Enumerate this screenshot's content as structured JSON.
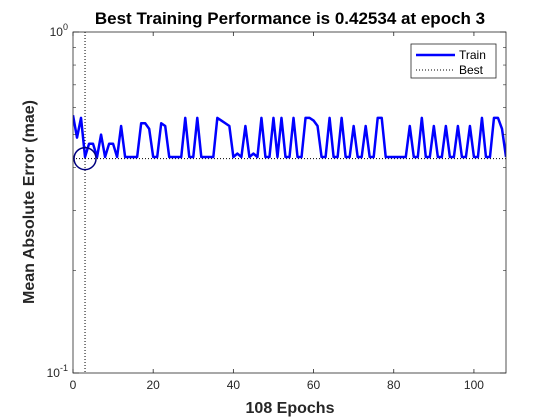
{
  "chart_data": {
    "type": "line",
    "title": "Best Training Performance is 0.42534 at epoch 3",
    "xlabel": "108 Epochs",
    "ylabel": "Mean Absolute Error  (mae)",
    "xlim": [
      0,
      108
    ],
    "ylim": [
      0.1,
      1
    ],
    "yscale": "log",
    "grid": false,
    "legend_position": "top-right",
    "x_ticks": [
      0,
      20,
      40,
      60,
      80,
      100
    ],
    "y_ticks": [
      {
        "value": 0.1,
        "base": "10",
        "exp": "-1"
      },
      {
        "value": 1,
        "base": "10",
        "exp": "0"
      }
    ],
    "best": {
      "epoch": 3,
      "value": 0.42534
    },
    "series": [
      {
        "name": "Train",
        "color": "#0000ff",
        "style": "solid",
        "x": [
          0,
          1,
          2,
          3,
          4,
          5,
          6,
          7,
          8,
          9,
          10,
          11,
          12,
          13,
          14,
          15,
          16,
          17,
          18,
          19,
          20,
          21,
          22,
          23,
          24,
          25,
          26,
          27,
          28,
          29,
          30,
          31,
          32,
          33,
          34,
          35,
          36,
          37,
          38,
          39,
          40,
          41,
          42,
          43,
          44,
          45,
          46,
          47,
          48,
          49,
          50,
          51,
          52,
          53,
          54,
          55,
          56,
          57,
          58,
          59,
          60,
          61,
          62,
          63,
          64,
          65,
          66,
          67,
          68,
          69,
          70,
          71,
          72,
          73,
          74,
          75,
          76,
          77,
          78,
          79,
          80,
          81,
          82,
          83,
          84,
          85,
          86,
          87,
          88,
          89,
          90,
          91,
          92,
          93,
          94,
          95,
          96,
          97,
          98,
          99,
          100,
          101,
          102,
          103,
          104,
          105,
          106,
          107,
          108
        ],
        "y": [
          0.57,
          0.49,
          0.56,
          0.43,
          0.47,
          0.47,
          0.43,
          0.5,
          0.43,
          0.47,
          0.47,
          0.43,
          0.53,
          0.43,
          0.43,
          0.43,
          0.43,
          0.54,
          0.54,
          0.52,
          0.43,
          0.43,
          0.54,
          0.53,
          0.43,
          0.43,
          0.43,
          0.43,
          0.56,
          0.43,
          0.43,
          0.56,
          0.43,
          0.43,
          0.43,
          0.43,
          0.56,
          0.55,
          0.54,
          0.53,
          0.43,
          0.44,
          0.43,
          0.53,
          0.43,
          0.44,
          0.43,
          0.56,
          0.43,
          0.43,
          0.56,
          0.43,
          0.56,
          0.43,
          0.43,
          0.56,
          0.43,
          0.43,
          0.56,
          0.56,
          0.55,
          0.53,
          0.43,
          0.43,
          0.56,
          0.43,
          0.43,
          0.56,
          0.43,
          0.43,
          0.53,
          0.43,
          0.43,
          0.53,
          0.43,
          0.43,
          0.56,
          0.56,
          0.43,
          0.43,
          0.43,
          0.43,
          0.43,
          0.43,
          0.53,
          0.43,
          0.43,
          0.56,
          0.43,
          0.43,
          0.53,
          0.43,
          0.43,
          0.53,
          0.43,
          0.43,
          0.53,
          0.43,
          0.43,
          0.53,
          0.43,
          0.43,
          0.56,
          0.43,
          0.43,
          0.56,
          0.56,
          0.52,
          0.43
        ]
      },
      {
        "name": "Best",
        "color": "#000000",
        "style": "dotted"
      }
    ],
    "annotations": [
      {
        "type": "vertical-dotted-line",
        "x": 3
      },
      {
        "type": "circle-marker",
        "x": 3,
        "y": 0.42534,
        "color": "#000080"
      }
    ]
  }
}
